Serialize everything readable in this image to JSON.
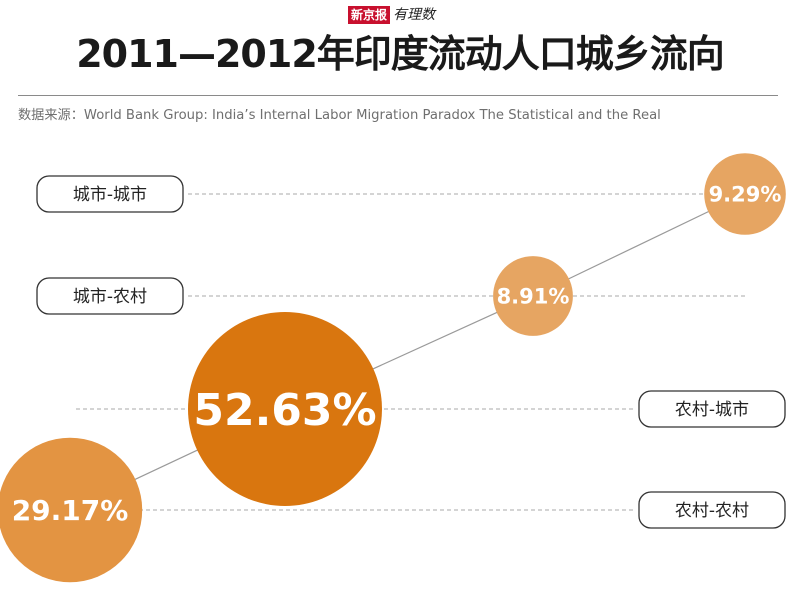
{
  "brand": {
    "box_text": "新京报",
    "script_text": "有理数"
  },
  "header": {
    "title": "2011—2012年印度流动人口城乡流向",
    "source": "数据来源：World Bank Group: India’s Internal Labor Migration Paradox The Statistical and the Real"
  },
  "colors": {
    "dark_orange": "#d9760f",
    "light_orange": "#e6a562",
    "mid_orange": "#e39442",
    "line": "#9a9a9a",
    "dash": "#a8a8a8"
  },
  "chart_data": {
    "type": "bubble",
    "title": "2011—2012年印度流动人口城乡流向",
    "categories": [
      "城市-城市",
      "城市-农村",
      "农村-城市",
      "农村-农村"
    ],
    "values": [
      9.29,
      8.91,
      52.63,
      29.17
    ],
    "value_labels": [
      "9.29%",
      "8.91%",
      "52.63%",
      "29.17%"
    ],
    "unit": "%",
    "label_side": [
      "left",
      "left",
      "right",
      "right"
    ]
  }
}
